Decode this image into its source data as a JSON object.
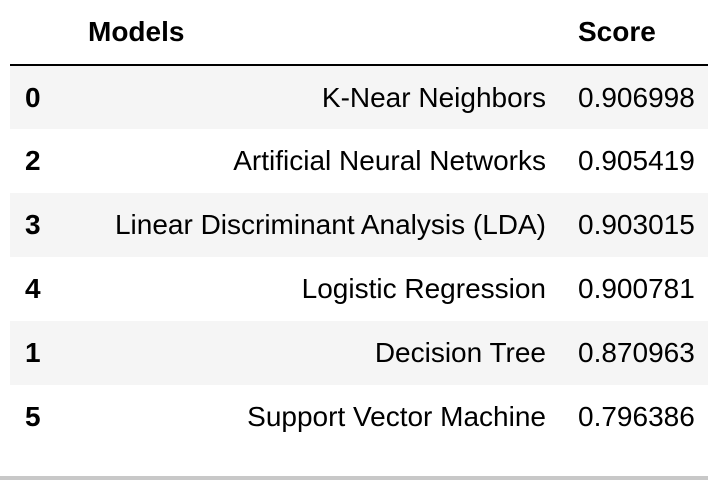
{
  "table": {
    "headers": {
      "index": "",
      "models": "Models",
      "score": "Score"
    },
    "rows": [
      {
        "index": "0",
        "model": "K-Near Neighbors",
        "score": "0.906998"
      },
      {
        "index": "2",
        "model": "Artificial Neural Networks",
        "score": "0.905419"
      },
      {
        "index": "3",
        "model": "Linear Discriminant Analysis (LDA)",
        "score": "0.903015"
      },
      {
        "index": "4",
        "model": "Logistic Regression",
        "score": "0.900781"
      },
      {
        "index": "1",
        "model": "Decision Tree",
        "score": "0.870963"
      },
      {
        "index": "5",
        "model": "Support Vector Machine",
        "score": "0.796386"
      }
    ]
  }
}
